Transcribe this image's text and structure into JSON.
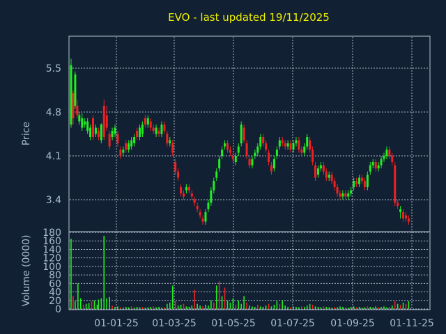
{
  "chart_data": {
    "type": "candlestick",
    "title": "EVO - last updated 19/11/2025",
    "ylabel": "Price",
    "volume_ylabel": "Volume (0000)",
    "ylim": [
      2.9,
      6.0
    ],
    "volume_ylim": [
      0,
      180
    ],
    "yticks": [
      3.4,
      4.1,
      4.8,
      5.5
    ],
    "volume_yticks": [
      0,
      20,
      40,
      60,
      80,
      100,
      120,
      140,
      160,
      180
    ],
    "xtick_labels": [
      "01-01-25",
      "01-03-25",
      "01-05-25",
      "01-07-25",
      "01-09-25",
      "01-11-25"
    ],
    "colors": {
      "up": "#22ee22",
      "down": "#ee2222",
      "background": "#112033",
      "title": "#f0f000",
      "text": "#a9bccf"
    },
    "grid": true,
    "prices": [
      [
        0,
        4.6,
        5.55,
        5.65,
        4.55
      ],
      [
        3,
        5.1,
        4.7,
        5.15,
        4.6
      ],
      [
        6,
        4.9,
        5.4,
        5.45,
        4.85
      ],
      [
        9,
        4.9,
        4.75,
        5.0,
        4.7
      ],
      [
        12,
        4.65,
        4.75,
        4.8,
        4.6
      ],
      [
        16,
        4.55,
        4.7,
        4.78,
        4.5
      ],
      [
        20,
        4.6,
        4.65,
        4.7,
        4.55
      ],
      [
        24,
        4.5,
        4.65,
        4.7,
        4.45
      ],
      [
        28,
        4.4,
        4.55,
        4.6,
        4.35
      ],
      [
        32,
        4.7,
        4.4,
        4.75,
        4.35
      ],
      [
        36,
        4.45,
        4.55,
        4.6,
        4.4
      ],
      [
        40,
        4.5,
        4.4,
        4.55,
        4.35
      ],
      [
        44,
        4.35,
        4.6,
        4.62,
        4.3
      ],
      [
        48,
        4.9,
        4.4,
        5.0,
        4.35
      ],
      [
        52,
        4.75,
        4.55,
        4.9,
        4.5
      ],
      [
        56,
        4.45,
        4.25,
        4.5,
        4.2
      ],
      [
        60,
        4.4,
        4.5,
        4.55,
        4.35
      ],
      [
        64,
        4.45,
        4.55,
        4.6,
        4.4
      ],
      [
        68,
        4.45,
        4.3,
        4.5,
        4.25
      ],
      [
        72,
        4.2,
        4.1,
        4.25,
        4.05
      ],
      [
        76,
        4.15,
        4.2,
        4.25,
        4.1
      ],
      [
        80,
        4.3,
        4.2,
        4.35,
        4.15
      ],
      [
        84,
        4.2,
        4.3,
        4.35,
        4.15
      ],
      [
        88,
        4.25,
        4.35,
        4.4,
        4.2
      ],
      [
        92,
        4.3,
        4.4,
        4.45,
        4.25
      ],
      [
        96,
        4.5,
        4.4,
        4.55,
        4.35
      ],
      [
        100,
        4.4,
        4.55,
        4.6,
        4.35
      ],
      [
        104,
        4.45,
        4.6,
        4.65,
        4.4
      ],
      [
        108,
        4.7,
        4.6,
        4.75,
        4.55
      ],
      [
        112,
        4.6,
        4.7,
        4.75,
        4.55
      ],
      [
        116,
        4.65,
        4.55,
        4.7,
        4.5
      ],
      [
        120,
        4.55,
        4.5,
        4.6,
        4.45
      ],
      [
        124,
        4.45,
        4.55,
        4.6,
        4.4
      ],
      [
        128,
        4.5,
        4.45,
        4.55,
        4.4
      ],
      [
        132,
        4.45,
        4.6,
        4.65,
        4.4
      ],
      [
        136,
        4.6,
        4.5,
        4.65,
        4.45
      ],
      [
        140,
        4.45,
        4.3,
        4.5,
        4.25
      ],
      [
        144,
        4.3,
        4.35,
        4.4,
        4.25
      ],
      [
        148,
        4.3,
        4.15,
        4.35,
        4.1
      ],
      [
        152,
        4.0,
        3.85,
        4.05,
        3.8
      ],
      [
        156,
        3.85,
        3.75,
        3.9,
        3.7
      ],
      [
        160,
        3.6,
        3.5,
        3.65,
        3.45
      ],
      [
        164,
        3.5,
        3.45,
        3.55,
        3.4
      ],
      [
        168,
        3.55,
        3.6,
        3.65,
        3.5
      ],
      [
        172,
        3.6,
        3.55,
        3.65,
        3.5
      ],
      [
        176,
        3.5,
        3.45,
        3.55,
        3.4
      ],
      [
        180,
        3.4,
        3.35,
        3.45,
        3.3
      ],
      [
        184,
        3.3,
        3.25,
        3.35,
        3.2
      ],
      [
        188,
        3.2,
        3.15,
        3.25,
        3.1
      ],
      [
        192,
        3.1,
        3.05,
        3.15,
        3.0
      ],
      [
        196,
        3.05,
        3.2,
        3.25,
        3.0
      ],
      [
        200,
        3.25,
        3.35,
        3.4,
        3.2
      ],
      [
        204,
        3.35,
        3.55,
        3.6,
        3.3
      ],
      [
        208,
        3.55,
        3.7,
        3.75,
        3.5
      ],
      [
        212,
        3.75,
        3.85,
        3.9,
        3.7
      ],
      [
        216,
        3.9,
        4.05,
        4.1,
        3.85
      ],
      [
        220,
        4.1,
        4.2,
        4.25,
        4.05
      ],
      [
        224,
        4.25,
        4.3,
        4.35,
        4.2
      ],
      [
        228,
        4.3,
        4.2,
        4.35,
        4.15
      ],
      [
        232,
        4.2,
        4.15,
        4.25,
        4.1
      ],
      [
        236,
        4.1,
        4.05,
        4.15,
        4.0
      ],
      [
        240,
        4.0,
        4.1,
        4.15,
        3.95
      ],
      [
        244,
        4.15,
        4.25,
        4.3,
        4.1
      ],
      [
        248,
        4.3,
        4.6,
        4.65,
        4.25
      ],
      [
        252,
        4.55,
        4.35,
        4.6,
        4.3
      ],
      [
        256,
        4.3,
        4.1,
        4.35,
        4.05
      ],
      [
        260,
        4.05,
        3.95,
        4.1,
        3.9
      ],
      [
        264,
        3.95,
        4.05,
        4.1,
        3.9
      ],
      [
        268,
        4.1,
        4.15,
        4.2,
        4.05
      ],
      [
        272,
        4.15,
        4.25,
        4.3,
        4.1
      ],
      [
        276,
        4.25,
        4.4,
        4.45,
        4.2
      ],
      [
        280,
        4.4,
        4.3,
        4.45,
        4.25
      ],
      [
        284,
        4.3,
        4.2,
        4.35,
        4.15
      ],
      [
        288,
        4.15,
        4.0,
        4.2,
        3.95
      ],
      [
        292,
        3.95,
        3.85,
        4.0,
        3.8
      ],
      [
        296,
        3.9,
        4.05,
        4.1,
        3.85
      ],
      [
        300,
        4.1,
        4.2,
        4.25,
        4.05
      ],
      [
        304,
        4.25,
        4.35,
        4.4,
        4.2
      ],
      [
        308,
        4.35,
        4.3,
        4.4,
        4.25
      ],
      [
        312,
        4.3,
        4.25,
        4.35,
        4.2
      ],
      [
        316,
        4.25,
        4.3,
        4.35,
        4.2
      ],
      [
        320,
        4.3,
        4.2,
        4.35,
        4.15
      ],
      [
        324,
        4.2,
        4.3,
        4.35,
        4.15
      ],
      [
        328,
        4.3,
        4.35,
        4.4,
        4.25
      ],
      [
        332,
        4.35,
        4.2,
        4.4,
        4.15
      ],
      [
        336,
        4.2,
        4.15,
        4.25,
        4.1
      ],
      [
        340,
        4.15,
        4.25,
        4.3,
        4.1
      ],
      [
        344,
        4.25,
        4.4,
        4.45,
        4.2
      ],
      [
        348,
        4.35,
        4.2,
        4.4,
        4.15
      ],
      [
        352,
        4.2,
        4.0,
        4.25,
        3.95
      ],
      [
        356,
        3.95,
        3.75,
        4.0,
        3.7
      ],
      [
        360,
        3.8,
        3.9,
        3.95,
        3.75
      ],
      [
        364,
        3.9,
        3.95,
        4.0,
        3.85
      ],
      [
        368,
        3.95,
        3.85,
        4.0,
        3.8
      ],
      [
        372,
        3.85,
        3.75,
        3.9,
        3.7
      ],
      [
        376,
        3.75,
        3.8,
        3.85,
        3.7
      ],
      [
        380,
        3.8,
        3.7,
        3.85,
        3.65
      ],
      [
        384,
        3.7,
        3.6,
        3.75,
        3.55
      ],
      [
        388,
        3.6,
        3.5,
        3.65,
        3.45
      ],
      [
        392,
        3.5,
        3.45,
        3.55,
        3.4
      ],
      [
        396,
        3.45,
        3.5,
        3.55,
        3.4
      ],
      [
        400,
        3.5,
        3.45,
        3.55,
        3.4
      ],
      [
        404,
        3.45,
        3.5,
        3.55,
        3.4
      ],
      [
        408,
        3.5,
        3.55,
        3.6,
        3.45
      ],
      [
        412,
        3.6,
        3.7,
        3.75,
        3.55
      ],
      [
        416,
        3.7,
        3.65,
        3.75,
        3.6
      ],
      [
        420,
        3.65,
        3.75,
        3.8,
        3.6
      ],
      [
        424,
        3.75,
        3.7,
        3.8,
        3.65
      ],
      [
        428,
        3.7,
        3.6,
        3.75,
        3.55
      ],
      [
        432,
        3.6,
        3.8,
        3.85,
        3.55
      ],
      [
        436,
        3.85,
        3.95,
        4.0,
        3.8
      ],
      [
        440,
        3.95,
        4.0,
        4.05,
        3.9
      ],
      [
        444,
        4.0,
        3.9,
        4.05,
        3.85
      ],
      [
        448,
        3.9,
        3.95,
        4.0,
        3.85
      ],
      [
        452,
        3.95,
        4.05,
        4.1,
        3.9
      ],
      [
        456,
        4.05,
        4.1,
        4.15,
        4.0
      ],
      [
        460,
        4.1,
        4.2,
        4.25,
        4.05
      ],
      [
        464,
        4.2,
        4.1,
        4.25,
        4.05
      ],
      [
        468,
        4.1,
        4.0,
        4.15,
        3.95
      ],
      [
        472,
        3.95,
        3.35,
        4.0,
        3.3
      ],
      [
        476,
        3.35,
        3.3,
        3.4,
        3.25
      ],
      [
        480,
        3.2,
        3.25,
        3.3,
        3.1
      ],
      [
        484,
        3.2,
        3.1,
        3.25,
        3.05
      ],
      [
        488,
        3.15,
        3.1,
        3.2,
        3.05
      ],
      [
        492,
        3.1,
        3.05,
        3.15,
        3.0
      ]
    ],
    "volumes": [
      [
        0,
        165,
        "up"
      ],
      [
        3,
        30,
        "down"
      ],
      [
        6,
        18,
        "up"
      ],
      [
        10,
        60,
        "up"
      ],
      [
        14,
        25,
        "up"
      ],
      [
        18,
        10,
        "down"
      ],
      [
        22,
        12,
        "up"
      ],
      [
        26,
        14,
        "up"
      ],
      [
        30,
        18,
        "down"
      ],
      [
        34,
        20,
        "up"
      ],
      [
        38,
        10,
        "up"
      ],
      [
        40,
        22,
        "up"
      ],
      [
        44,
        25,
        "up"
      ],
      [
        48,
        172,
        "up"
      ],
      [
        52,
        25,
        "up"
      ],
      [
        56,
        28,
        "up"
      ],
      [
        60,
        8,
        "down"
      ],
      [
        64,
        5,
        "up"
      ],
      [
        68,
        6,
        "up"
      ],
      [
        72,
        4,
        "down"
      ],
      [
        76,
        3,
        "up"
      ],
      [
        80,
        5,
        "up"
      ],
      [
        84,
        4,
        "up"
      ],
      [
        88,
        6,
        "down"
      ],
      [
        92,
        3,
        "up"
      ],
      [
        96,
        5,
        "up"
      ],
      [
        100,
        4,
        "up"
      ],
      [
        104,
        5,
        "down"
      ],
      [
        108,
        3,
        "up"
      ],
      [
        112,
        4,
        "up"
      ],
      [
        116,
        5,
        "up"
      ],
      [
        120,
        6,
        "down"
      ],
      [
        124,
        4,
        "up"
      ],
      [
        128,
        5,
        "up"
      ],
      [
        132,
        3,
        "up"
      ],
      [
        136,
        4,
        "down"
      ],
      [
        140,
        12,
        "up"
      ],
      [
        144,
        15,
        "up"
      ],
      [
        148,
        55,
        "up"
      ],
      [
        152,
        18,
        "down"
      ],
      [
        156,
        8,
        "up"
      ],
      [
        160,
        10,
        "up"
      ],
      [
        164,
        12,
        "down"
      ],
      [
        168,
        6,
        "up"
      ],
      [
        172,
        5,
        "up"
      ],
      [
        176,
        8,
        "up"
      ],
      [
        180,
        45,
        "down"
      ],
      [
        184,
        12,
        "up"
      ],
      [
        188,
        8,
        "up"
      ],
      [
        192,
        6,
        "down"
      ],
      [
        196,
        10,
        "up"
      ],
      [
        200,
        8,
        "up"
      ],
      [
        204,
        20,
        "up"
      ],
      [
        208,
        15,
        "down"
      ],
      [
        212,
        55,
        "up"
      ],
      [
        216,
        65,
        "down"
      ],
      [
        220,
        30,
        "up"
      ],
      [
        224,
        50,
        "down"
      ],
      [
        228,
        20,
        "up"
      ],
      [
        232,
        15,
        "up"
      ],
      [
        236,
        25,
        "up"
      ],
      [
        240,
        10,
        "down"
      ],
      [
        244,
        20,
        "up"
      ],
      [
        248,
        12,
        "up"
      ],
      [
        252,
        30,
        "up"
      ],
      [
        256,
        15,
        "down"
      ],
      [
        260,
        8,
        "up"
      ],
      [
        264,
        6,
        "up"
      ],
      [
        268,
        5,
        "up"
      ],
      [
        272,
        10,
        "down"
      ],
      [
        276,
        6,
        "up"
      ],
      [
        280,
        5,
        "up"
      ],
      [
        284,
        8,
        "up"
      ],
      [
        288,
        12,
        "down"
      ],
      [
        292,
        6,
        "up"
      ],
      [
        296,
        10,
        "up"
      ],
      [
        300,
        18,
        "up"
      ],
      [
        304,
        12,
        "down"
      ],
      [
        308,
        20,
        "up"
      ],
      [
        312,
        8,
        "up"
      ],
      [
        316,
        5,
        "up"
      ],
      [
        320,
        4,
        "down"
      ],
      [
        324,
        6,
        "up"
      ],
      [
        328,
        5,
        "up"
      ],
      [
        332,
        4,
        "up"
      ],
      [
        336,
        6,
        "down"
      ],
      [
        340,
        5,
        "up"
      ],
      [
        344,
        8,
        "up"
      ],
      [
        348,
        12,
        "up"
      ],
      [
        352,
        10,
        "down"
      ],
      [
        356,
        6,
        "up"
      ],
      [
        360,
        5,
        "up"
      ],
      [
        364,
        4,
        "up"
      ],
      [
        368,
        6,
        "down"
      ],
      [
        372,
        5,
        "up"
      ],
      [
        376,
        4,
        "up"
      ],
      [
        380,
        3,
        "up"
      ],
      [
        384,
        5,
        "down"
      ],
      [
        388,
        4,
        "up"
      ],
      [
        392,
        6,
        "up"
      ],
      [
        396,
        5,
        "up"
      ],
      [
        400,
        4,
        "down"
      ],
      [
        404,
        3,
        "up"
      ],
      [
        408,
        5,
        "up"
      ],
      [
        412,
        6,
        "up"
      ],
      [
        416,
        4,
        "down"
      ],
      [
        420,
        5,
        "up"
      ],
      [
        424,
        3,
        "up"
      ],
      [
        428,
        4,
        "up"
      ],
      [
        432,
        6,
        "down"
      ],
      [
        436,
        5,
        "up"
      ],
      [
        440,
        4,
        "up"
      ],
      [
        444,
        6,
        "up"
      ],
      [
        448,
        4,
        "down"
      ],
      [
        452,
        5,
        "up"
      ],
      [
        456,
        6,
        "up"
      ],
      [
        460,
        4,
        "up"
      ],
      [
        464,
        5,
        "down"
      ],
      [
        468,
        8,
        "up"
      ],
      [
        472,
        18,
        "down"
      ],
      [
        476,
        12,
        "up"
      ],
      [
        480,
        10,
        "down"
      ],
      [
        484,
        15,
        "up"
      ],
      [
        488,
        12,
        "down"
      ],
      [
        492,
        18,
        "up"
      ]
    ]
  }
}
